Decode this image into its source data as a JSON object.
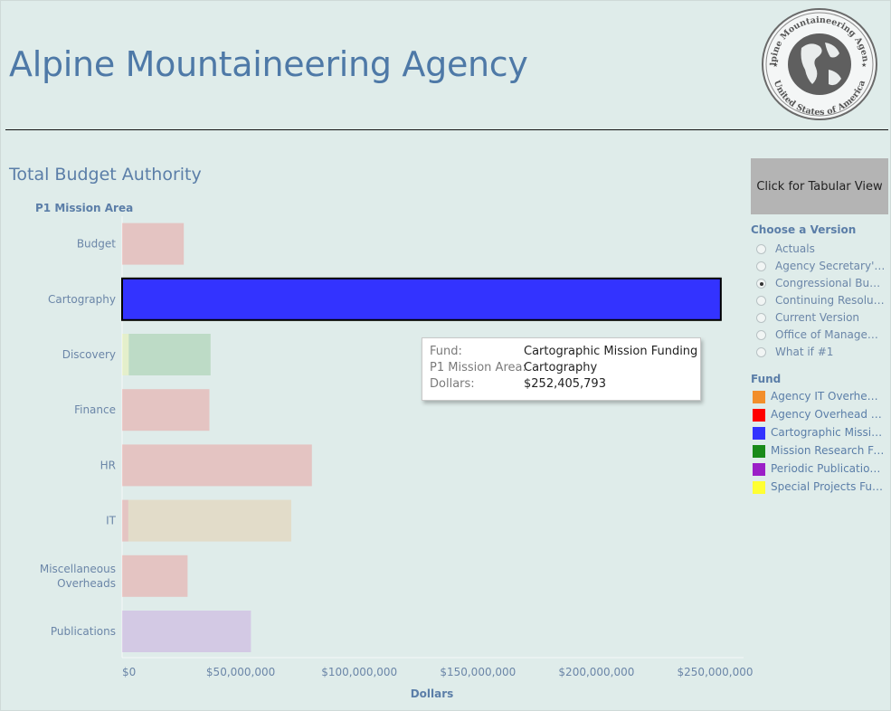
{
  "header": {
    "title": "Alpine Mountaineering Agency"
  },
  "seal": {
    "top_text": "Alpine Mountaineering Agency",
    "bottom_text": "United States of America"
  },
  "tabular_button": {
    "label": "Click for Tabular View"
  },
  "version_selector": {
    "title": "Choose a Version",
    "options": [
      {
        "label": "Actuals",
        "selected": false
      },
      {
        "label": "Agency Secretary's Request",
        "selected": false
      },
      {
        "label": "Congressional Budget",
        "selected": true
      },
      {
        "label": "Continuing Resolution",
        "selected": false
      },
      {
        "label": "Current Version",
        "selected": false
      },
      {
        "label": "Office of Management and Budget",
        "selected": false
      },
      {
        "label": "What if #1",
        "selected": false
      }
    ]
  },
  "fund_legend": {
    "title": "Fund",
    "items": [
      {
        "label": "Agency IT Overhead Funding",
        "color": "#f28e2b"
      },
      {
        "label": "Agency Overhead Funding",
        "color": "#ff0000"
      },
      {
        "label": "Cartographic Mission Funding",
        "color": "#3333ff"
      },
      {
        "label": "Mission Research Funding",
        "color": "#1a8a1a"
      },
      {
        "label": "Periodic Publications Funding",
        "color": "#9b1fc7"
      },
      {
        "label": "Special Projects Funding",
        "color": "#ffff33"
      }
    ]
  },
  "tooltip": {
    "rows": [
      {
        "key": "Fund:",
        "value": "Cartographic Mission Funding"
      },
      {
        "key": "P1 Mission Area:",
        "value": "Cartography"
      },
      {
        "key": "Dollars:",
        "value": "$252,405,793"
      }
    ]
  },
  "chart_data": {
    "type": "bar",
    "orientation": "horizontal",
    "stacked": true,
    "title": "Total Budget Authority",
    "row_header": "P1 Mission Area",
    "xlabel": "Dollars",
    "xlim": [
      0,
      262000000
    ],
    "x_ticks": [
      {
        "value": 0,
        "label": "$0"
      },
      {
        "value": 50000000,
        "label": "$50,000,000"
      },
      {
        "value": 100000000,
        "label": "$100,000,000"
      },
      {
        "value": 150000000,
        "label": "$150,000,000"
      },
      {
        "value": 200000000,
        "label": "$200,000,000"
      },
      {
        "value": 250000000,
        "label": "$250,000,000"
      }
    ],
    "highlighted": {
      "category": "Cartography",
      "fund": "Cartographic Mission Funding"
    },
    "categories": [
      {
        "label": "Budget",
        "segments": [
          {
            "fund": "Agency Overhead Funding",
            "value": 26000000,
            "color": "#ff0000"
          }
        ]
      },
      {
        "label": "Cartography",
        "segments": [
          {
            "fund": "Cartographic Mission Funding",
            "value": 252405793,
            "color": "#3333ff"
          }
        ]
      },
      {
        "label": "Discovery",
        "segments": [
          {
            "fund": "Special Projects Funding",
            "value": 2800000,
            "color": "#ffff33"
          },
          {
            "fund": "Mission Research Funding",
            "value": 34500000,
            "color": "#1a8a1a"
          }
        ]
      },
      {
        "label": "Finance",
        "segments": [
          {
            "fund": "Agency Overhead Funding",
            "value": 36800000,
            "color": "#ff0000"
          }
        ]
      },
      {
        "label": "HR",
        "segments": [
          {
            "fund": "Agency Overhead Funding",
            "value": 80000000,
            "color": "#ff0000"
          }
        ]
      },
      {
        "label": "IT",
        "segments": [
          {
            "fund": "Agency Overhead Funding",
            "value": 2600000,
            "color": "#ff0000"
          },
          {
            "fund": "Agency IT Overhead Funding",
            "value": 68700000,
            "color": "#f28e2b"
          }
        ]
      },
      {
        "label": "Miscellaneous Overheads",
        "segments": [
          {
            "fund": "Agency Overhead Funding",
            "value": 27600000,
            "color": "#ff0000"
          }
        ]
      },
      {
        "label": "Publications",
        "segments": [
          {
            "fund": "Periodic Publications Funding",
            "value": 54300000,
            "color": "#9b1fc7"
          }
        ]
      }
    ]
  }
}
